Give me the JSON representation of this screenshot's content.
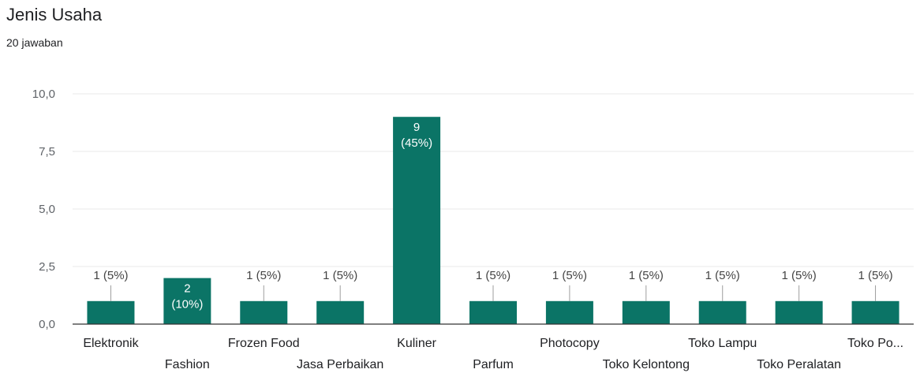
{
  "header": {
    "title": "Jenis Usaha",
    "subtitle": "20 jawaban"
  },
  "colors": {
    "bar": "#0b7466",
    "grid": "#e8e8e8",
    "axis": "#333333"
  },
  "chart_data": {
    "type": "bar",
    "categories": [
      "Elektronik",
      "Fashion",
      "Frozen Food",
      "Jasa Perbaikan",
      "Kuliner",
      "Parfum",
      "Photocopy",
      "Toko Kelontong",
      "Toko Lampu",
      "Toko Peralatan",
      "Toko Po..."
    ],
    "values": [
      1,
      2,
      1,
      1,
      9,
      1,
      1,
      1,
      1,
      1,
      1
    ],
    "data_labels": [
      "1 (5%)",
      "2 (10%)",
      "1 (5%)",
      "1 (5%)",
      "9 (45%)",
      "1 (5%)",
      "1 (5%)",
      "1 (5%)",
      "1 (5%)",
      "1 (5%)",
      "1 (5%)"
    ],
    "ylim": [
      0,
      10
    ],
    "yticks": [
      "0,0",
      "2,5",
      "5,0",
      "7,5",
      "10,0"
    ],
    "grid": true,
    "legend": "none"
  }
}
